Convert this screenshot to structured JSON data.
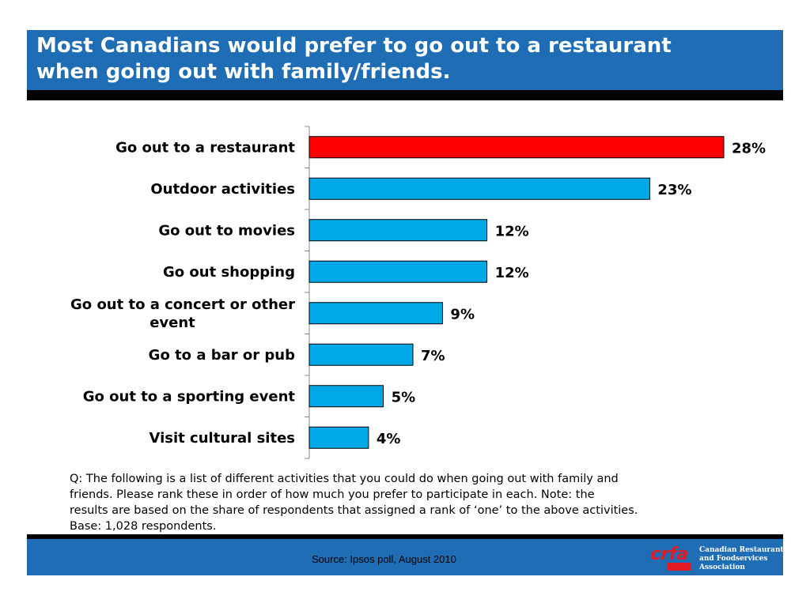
{
  "header": {
    "title_line1": "Most Canadians would prefer to go out to a restaurant",
    "title_line2": "when going out with family/friends."
  },
  "chart_data": {
    "type": "bar",
    "orientation": "horizontal",
    "categories": [
      [
        "Go out to a restaurant"
      ],
      [
        "Outdoor activities"
      ],
      [
        "Go out to movies"
      ],
      [
        "Go out shopping"
      ],
      [
        "Go out to a concert or other",
        "event"
      ],
      [
        "Go to a bar or pub"
      ],
      [
        "Go out to a sporting event"
      ],
      [
        "Visit cultural sites"
      ]
    ],
    "values": [
      28,
      23,
      12,
      12,
      9,
      7,
      5,
      4
    ],
    "value_labels": [
      "28%",
      "23%",
      "12%",
      "12%",
      "9%",
      "7%",
      "5%",
      "4%"
    ],
    "highlight_index": 0,
    "colors": {
      "highlight": "#ff0000",
      "default": "#00a8e8",
      "border": "#000000"
    },
    "xlim": [
      0,
      28
    ],
    "grid": false
  },
  "note": {
    "line1": "Q:  The following is a list of different activities that you could do when going out with family and",
    "line2": "friends.  Please rank these in order of how much you prefer to participate in each.  Note: the",
    "line3": "results are based on the share of respondents that assigned a rank of ‘one’ to the above activities.",
    "line4": "Base:  1,028 respondents."
  },
  "footer": {
    "source": "Source:  Ipsos poll, August 2010",
    "logo_mark": "crfa",
    "logo_line1": "Canadian Restaurant",
    "logo_line2": "and Foodservices",
    "logo_line3": "Association"
  },
  "colors": {
    "brand_blue": "#1f6db5",
    "logo_red": "#e31b23"
  }
}
